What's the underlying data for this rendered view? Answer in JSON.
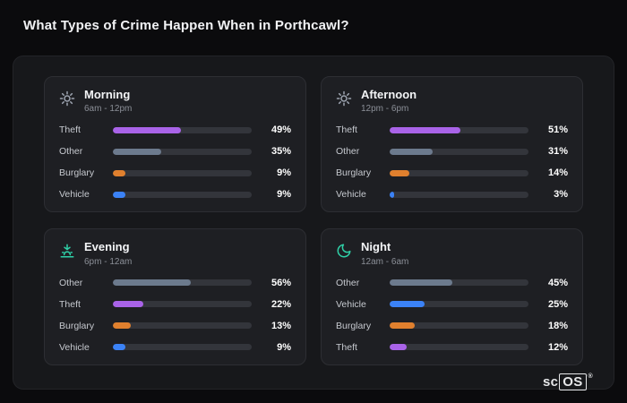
{
  "page": {
    "title": "What Types of Crime Happen When in Porthcawl?"
  },
  "category_colors": {
    "Theft": "#a963e8",
    "Other": "#6c7a8d",
    "Burglary": "#e0802e",
    "Vehicle": "#3b82f6"
  },
  "chart_data": [
    {
      "type": "bar",
      "orientation": "horizontal",
      "title": "Morning",
      "subtitle": "6am - 12pm",
      "icon": "sun-icon",
      "icon_color": "#9ca3af",
      "categories": [
        "Theft",
        "Other",
        "Burglary",
        "Vehicle"
      ],
      "values": [
        49,
        35,
        9,
        9
      ],
      "value_labels": [
        "49%",
        "35%",
        "9%",
        "9%"
      ],
      "xlim": [
        0,
        100
      ],
      "unit": "%"
    },
    {
      "type": "bar",
      "orientation": "horizontal",
      "title": "Afternoon",
      "subtitle": "12pm - 6pm",
      "icon": "sun-icon",
      "icon_color": "#9ca3af",
      "categories": [
        "Theft",
        "Other",
        "Burglary",
        "Vehicle"
      ],
      "values": [
        51,
        31,
        14,
        3
      ],
      "value_labels": [
        "51%",
        "31%",
        "14%",
        "3%"
      ],
      "xlim": [
        0,
        100
      ],
      "unit": "%"
    },
    {
      "type": "bar",
      "orientation": "horizontal",
      "title": "Evening",
      "subtitle": "6pm - 12am",
      "icon": "sunset-icon",
      "icon_color": "#2fd1a8",
      "categories": [
        "Other",
        "Theft",
        "Burglary",
        "Vehicle"
      ],
      "values": [
        56,
        22,
        13,
        9
      ],
      "value_labels": [
        "56%",
        "22%",
        "13%",
        "9%"
      ],
      "xlim": [
        0,
        100
      ],
      "unit": "%"
    },
    {
      "type": "bar",
      "orientation": "horizontal",
      "title": "Night",
      "subtitle": "12am - 6am",
      "icon": "moon-icon",
      "icon_color": "#2fd1a8",
      "categories": [
        "Other",
        "Vehicle",
        "Burglary",
        "Theft"
      ],
      "values": [
        45,
        25,
        18,
        12
      ],
      "value_labels": [
        "45%",
        "25%",
        "18%",
        "12%"
      ],
      "xlim": [
        0,
        100
      ],
      "unit": "%"
    }
  ],
  "logo": {
    "prefix": "sc",
    "boxed": "OS",
    "reg": "®"
  }
}
